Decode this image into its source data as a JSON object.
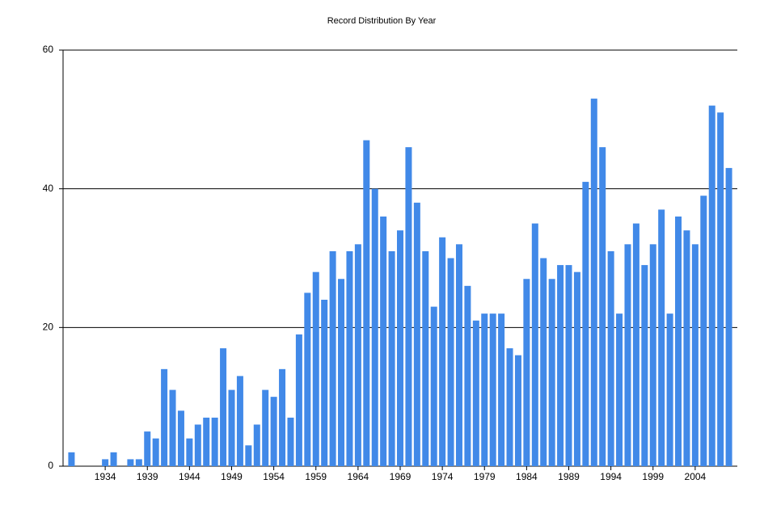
{
  "chart_data": {
    "type": "bar",
    "title": "Record Distribution By Year",
    "categories": [
      null,
      null,
      null,
      null,
      "1934",
      null,
      null,
      null,
      null,
      "1939",
      null,
      null,
      null,
      null,
      "1944",
      null,
      null,
      null,
      null,
      "1949",
      null,
      null,
      null,
      null,
      "1954",
      null,
      null,
      null,
      null,
      "1959",
      null,
      null,
      null,
      null,
      "1964",
      null,
      null,
      null,
      null,
      "1969",
      null,
      null,
      null,
      null,
      "1974",
      null,
      null,
      null,
      null,
      "1979",
      null,
      null,
      null,
      null,
      "1984",
      null,
      null,
      null,
      null,
      "1989",
      null,
      null,
      null,
      null,
      "1994",
      null,
      null,
      null,
      null,
      "1999",
      null,
      null,
      null,
      null,
      "2004",
      null,
      null,
      null,
      null
    ],
    "values": [
      2,
      0,
      0,
      0,
      1,
      2,
      0,
      1,
      1,
      5,
      4,
      14,
      11,
      8,
      4,
      6,
      7,
      7,
      17,
      11,
      13,
      3,
      6,
      11,
      10,
      14,
      7,
      19,
      25,
      28,
      24,
      31,
      27,
      31,
      32,
      47,
      40,
      36,
      31,
      34,
      46,
      38,
      31,
      23,
      33,
      30,
      32,
      26,
      21,
      22,
      22,
      22,
      17,
      16,
      27,
      35,
      30,
      27,
      29,
      29,
      28,
      41,
      53,
      46,
      31,
      22,
      32,
      35,
      29,
      32,
      37,
      22,
      36,
      34,
      32,
      39,
      52,
      51,
      43
    ],
    "color": "#4189e8",
    "ylim": [
      0,
      60
    ],
    "yticks": [
      0,
      20,
      40,
      60
    ],
    "grid": true
  }
}
